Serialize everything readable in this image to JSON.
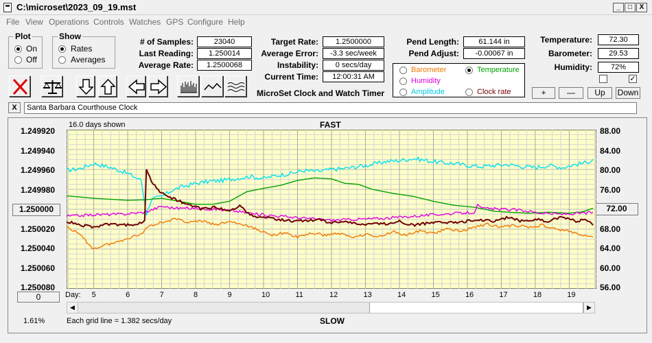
{
  "window": {
    "title": "C:\\microset\\2023_09_19.mst",
    "min": "_",
    "max": "□",
    "close": "X"
  },
  "menu": [
    "File",
    "View",
    "Operations",
    "Controls",
    "Watches",
    "GPS",
    "Configure",
    "Help"
  ],
  "plot": {
    "label": "Plot",
    "on": "On",
    "off": "Off",
    "selected": "On"
  },
  "show": {
    "label": "Show",
    "rates": "Rates",
    "averages": "Averages",
    "selected": "Rates"
  },
  "stats": {
    "samples_label": "# of Samples:",
    "samples": "23040",
    "last_label": "Last Reading:",
    "last": "1.250014",
    "avg_label": "Average Rate:",
    "avg": "1.2500068",
    "target_label": "Target Rate:",
    "target": "1.2500000",
    "err_label": "Average Error:",
    "err": "-3.3 sec/week",
    "instab_label": "Instability:",
    "instab": "0 secs/day",
    "time_label": "Current Time:",
    "time": "12:00:31 AM",
    "pendlen_label": "Pend Length:",
    "pendlen": "61.144 in",
    "pendadj_label": "Pend Adjust:",
    "pendadj": "-0.00067 in",
    "temp_label": "Temperature:",
    "temp": "72.30",
    "baro_label": "Barometer:",
    "baro": "29.53",
    "hum_label": "Humidity:",
    "hum": "72%"
  },
  "app_title": "MicroSet Clock and Watch Timer",
  "legend": {
    "barometer": "Barometer",
    "temperature": "Temperature",
    "humidity": "Humidity",
    "amplitude": "Amplitude",
    "clockrate": "Clock rate",
    "selected": "Temperature",
    "colors": {
      "barometer": "#f07800",
      "temperature": "#00a000",
      "humidity": "#e000e0",
      "amplitude": "#00d8e8",
      "clockrate": "#700000"
    }
  },
  "side_buttons": {
    "plus": "+",
    "minus": "—",
    "up": "Up",
    "down": "Down"
  },
  "checks": {
    "left": "",
    "right": "✓"
  },
  "clock_name": "Santa Barbara Courthouse Clock",
  "clock_close": "X",
  "chart_data": {
    "type": "line",
    "days_shown": "16.0 days shown",
    "top_label": "FAST",
    "bottom_label": "SLOW",
    "grid_note": "Each grid line = 1.382 secs/day",
    "percent": "1.61%",
    "left_ticks": [
      "1.249920",
      "1.249940",
      "1.249960",
      "1.249980",
      "1.250000",
      "1.250020",
      "1.250040",
      "1.250060",
      "1.250080"
    ],
    "right_ticks": [
      "88.00",
      "84.00",
      "80.00",
      "76.00",
      "72.00",
      "68.00",
      "64.00",
      "60.00",
      "56.00"
    ],
    "left_center_value": "1.250000",
    "right_center_value": "72.00",
    "x_label": "Day:",
    "days": [
      "5",
      "6",
      "7",
      "8",
      "9",
      "10",
      "11",
      "12",
      "13",
      "14",
      "15",
      "16",
      "17",
      "18",
      "19"
    ],
    "scroll_value": "0",
    "grid": true,
    "xlim": [
      4.2,
      19.8
    ],
    "ylim_left": [
      1.24992,
      1.25008
    ],
    "ylim_right": [
      56,
      88
    ],
    "series": [
      {
        "name": "Amplitude",
        "color": "#00e0f0",
        "axis": "right",
        "points": [
          [
            4.2,
            79.8
          ],
          [
            4.6,
            80.2
          ],
          [
            5.0,
            81.2
          ],
          [
            5.5,
            80.4
          ],
          [
            6.0,
            79.2
          ],
          [
            6.4,
            77.8
          ],
          [
            6.55,
            71
          ],
          [
            6.7,
            74
          ],
          [
            7.0,
            74.5
          ],
          [
            7.3,
            75.8
          ],
          [
            7.6,
            76.5
          ],
          [
            8.0,
            77.2
          ],
          [
            8.4,
            77.6
          ],
          [
            8.8,
            77.8
          ],
          [
            9.2,
            78.2
          ],
          [
            9.6,
            78.6
          ],
          [
            10.0,
            78.2
          ],
          [
            10.4,
            78.8
          ],
          [
            10.8,
            79.2
          ],
          [
            11.2,
            79.8
          ],
          [
            11.6,
            79.6
          ],
          [
            12.0,
            80.0
          ],
          [
            12.4,
            80.2
          ],
          [
            12.8,
            80.6
          ],
          [
            13.2,
            81.0
          ],
          [
            13.6,
            81.6
          ],
          [
            14.0,
            81.8
          ],
          [
            14.4,
            82.2
          ],
          [
            14.8,
            81.8
          ],
          [
            15.2,
            81.4
          ],
          [
            15.6,
            81.2
          ],
          [
            16.0,
            80.8
          ],
          [
            16.4,
            80.6
          ],
          [
            16.8,
            80.8
          ],
          [
            17.2,
            81.0
          ],
          [
            17.6,
            80.6
          ],
          [
            18.0,
            80.4
          ],
          [
            18.4,
            80.8
          ],
          [
            18.8,
            80.4
          ],
          [
            19.2,
            81.0
          ],
          [
            19.5,
            81.4
          ],
          [
            19.7,
            82.0
          ]
        ]
      },
      {
        "name": "Temperature",
        "color": "#00a000",
        "axis": "right",
        "points": [
          [
            4.2,
            74.7
          ],
          [
            5.0,
            74.2
          ],
          [
            6.0,
            73.8
          ],
          [
            6.5,
            73.9
          ],
          [
            7.0,
            74.2
          ],
          [
            7.5,
            73.6
          ],
          [
            8.0,
            73.0
          ],
          [
            8.5,
            73.0
          ],
          [
            9.0,
            73.6
          ],
          [
            9.5,
            75.5
          ],
          [
            10.0,
            76.2
          ],
          [
            10.5,
            76.8
          ],
          [
            11.0,
            77.8
          ],
          [
            11.5,
            78.3
          ],
          [
            12.0,
            78.1
          ],
          [
            12.4,
            77.2
          ],
          [
            12.8,
            77.0
          ],
          [
            13.2,
            76.0
          ],
          [
            13.8,
            75.2
          ],
          [
            14.4,
            74.6
          ],
          [
            15.0,
            73.6
          ],
          [
            15.6,
            72.8
          ],
          [
            16.2,
            72.4
          ],
          [
            16.8,
            71.6
          ],
          [
            17.2,
            71.4
          ],
          [
            17.8,
            71.2
          ],
          [
            18.4,
            71.4
          ],
          [
            19.0,
            71.2
          ],
          [
            19.4,
            71.5
          ],
          [
            19.7,
            72.2
          ]
        ]
      },
      {
        "name": "Humidity",
        "color": "#e000e0",
        "axis": "right",
        "points": [
          [
            4.2,
            70.6
          ],
          [
            5.0,
            70.9
          ],
          [
            5.8,
            71.0
          ],
          [
            6.5,
            71.4
          ],
          [
            7.0,
            72.6
          ],
          [
            7.4,
            72.2
          ],
          [
            8.0,
            72.2
          ],
          [
            8.6,
            72.0
          ],
          [
            9.2,
            71.6
          ],
          [
            9.8,
            71.0
          ],
          [
            10.5,
            70.6
          ],
          [
            11.2,
            70.2
          ],
          [
            12.0,
            69.8
          ],
          [
            12.8,
            70.0
          ],
          [
            13.6,
            70.2
          ],
          [
            14.4,
            70.6
          ],
          [
            15.2,
            71.0
          ],
          [
            15.8,
            71.2
          ],
          [
            16.2,
            71.4
          ],
          [
            16.3,
            72.8
          ],
          [
            16.4,
            72.2
          ],
          [
            17.0,
            72.0
          ],
          [
            17.6,
            71.8
          ],
          [
            18.2,
            71.2
          ],
          [
            18.8,
            71.0
          ],
          [
            19.4,
            71.2
          ],
          [
            19.7,
            71.4
          ]
        ]
      },
      {
        "name": "Barometer",
        "color": "#f07800",
        "axis": "left",
        "points": [
          [
            4.2,
            1.250017
          ],
          [
            4.6,
            1.250026
          ],
          [
            5.0,
            1.25004
          ],
          [
            5.3,
            1.250036
          ],
          [
            5.6,
            1.250034
          ],
          [
            6.0,
            1.250029
          ],
          [
            6.4,
            1.250025
          ],
          [
            6.6,
            1.250017
          ],
          [
            7.0,
            1.250013
          ],
          [
            7.4,
            1.25001
          ],
          [
            7.8,
            1.250013
          ],
          [
            8.2,
            1.250012
          ],
          [
            8.6,
            1.250016
          ],
          [
            9.0,
            1.250012
          ],
          [
            9.4,
            1.250016
          ],
          [
            9.8,
            1.25002
          ],
          [
            10.2,
            1.250026
          ],
          [
            10.6,
            1.250024
          ],
          [
            11.0,
            1.250028
          ],
          [
            11.4,
            1.250024
          ],
          [
            11.8,
            1.250026
          ],
          [
            12.2,
            1.250024
          ],
          [
            12.6,
            1.250028
          ],
          [
            13.0,
            1.250025
          ],
          [
            13.4,
            1.250028
          ],
          [
            13.8,
            1.250022
          ],
          [
            14.2,
            1.250026
          ],
          [
            14.6,
            1.250022
          ],
          [
            15.0,
            1.250024
          ],
          [
            15.4,
            1.25002
          ],
          [
            15.8,
            1.250022
          ],
          [
            16.2,
            1.250018
          ],
          [
            16.6,
            1.250015
          ],
          [
            17.0,
            1.250018
          ],
          [
            17.4,
            1.250016
          ],
          [
            17.8,
            1.250018
          ],
          [
            18.2,
            1.250016
          ],
          [
            18.6,
            1.25002
          ],
          [
            19.0,
            1.250022
          ],
          [
            19.4,
            1.250027
          ],
          [
            19.7,
            1.250028
          ]
        ]
      },
      {
        "name": "Clock rate",
        "color": "#700000",
        "axis": "left",
        "points": [
          [
            4.2,
            1.250012
          ],
          [
            4.6,
            1.250016
          ],
          [
            5.0,
            1.250018
          ],
          [
            5.4,
            1.250015
          ],
          [
            5.8,
            1.250016
          ],
          [
            6.2,
            1.250015
          ],
          [
            6.5,
            1.250012
          ],
          [
            6.55,
            1.24996
          ],
          [
            6.7,
            1.249972
          ],
          [
            7.0,
            1.249984
          ],
          [
            7.4,
            1.24999
          ],
          [
            7.8,
            1.249996
          ],
          [
            8.2,
            1.25
          ],
          [
            8.6,
            1.249998
          ],
          [
            9.0,
            1.250002
          ],
          [
            9.3,
            1.249996
          ],
          [
            9.6,
            1.250006
          ],
          [
            10.0,
            1.250008
          ],
          [
            10.4,
            1.25001
          ],
          [
            10.8,
            1.250012
          ],
          [
            11.2,
            1.250012
          ],
          [
            11.6,
            1.25001
          ],
          [
            12.0,
            1.250014
          ],
          [
            12.4,
            1.250012
          ],
          [
            12.8,
            1.250016
          ],
          [
            13.2,
            1.250014
          ],
          [
            13.6,
            1.250015
          ],
          [
            14.0,
            1.250012
          ],
          [
            14.4,
            1.250016
          ],
          [
            14.8,
            1.250014
          ],
          [
            15.2,
            1.250012
          ],
          [
            15.6,
            1.250014
          ],
          [
            16.0,
            1.250012
          ],
          [
            16.4,
            1.250011
          ],
          [
            16.8,
            1.250012
          ],
          [
            17.2,
            1.250008
          ],
          [
            17.6,
            1.250012
          ],
          [
            18.0,
            1.25001
          ],
          [
            18.4,
            1.250012
          ],
          [
            18.8,
            1.250008
          ],
          [
            19.2,
            1.250012
          ],
          [
            19.5,
            1.25001
          ],
          [
            19.7,
            1.250016
          ]
        ]
      }
    ]
  }
}
